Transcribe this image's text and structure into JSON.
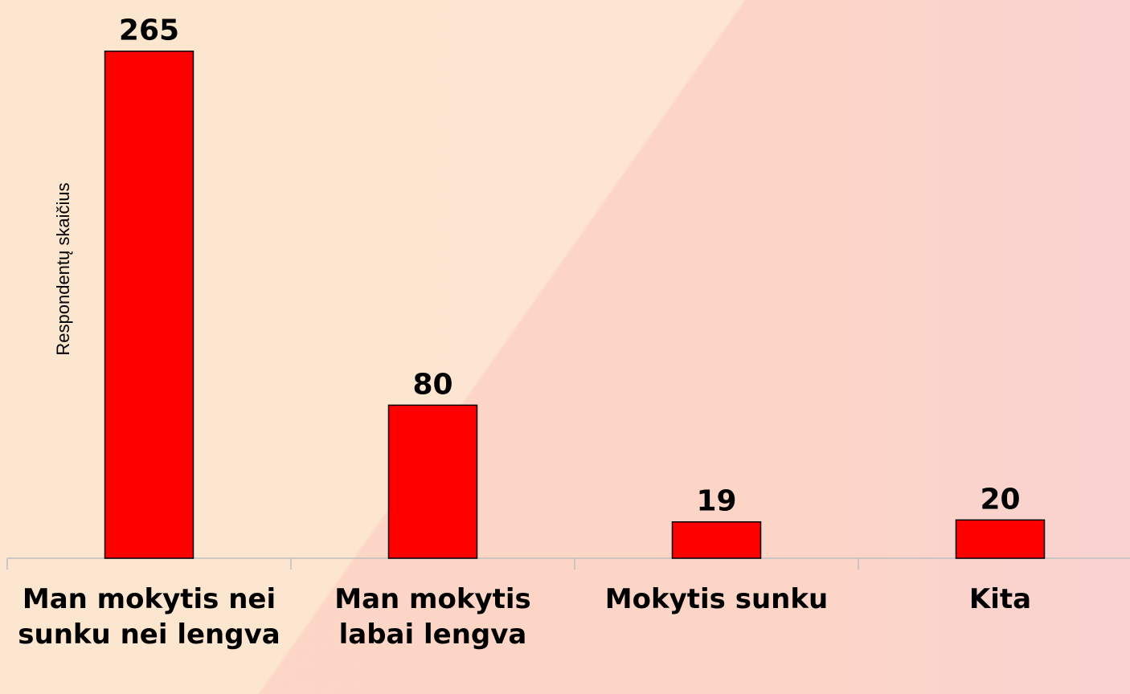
{
  "chart_data": {
    "type": "bar",
    "y_label": "Respondentų skaičius",
    "categories": [
      "Man mokytis nei sunku nei lengva",
      "Man mokytis labai lengva",
      "Mokytis sunku",
      "Kita"
    ],
    "values": [
      265,
      80,
      19,
      20
    ],
    "color": "#ff0000",
    "ylim": [
      0,
      280
    ]
  }
}
